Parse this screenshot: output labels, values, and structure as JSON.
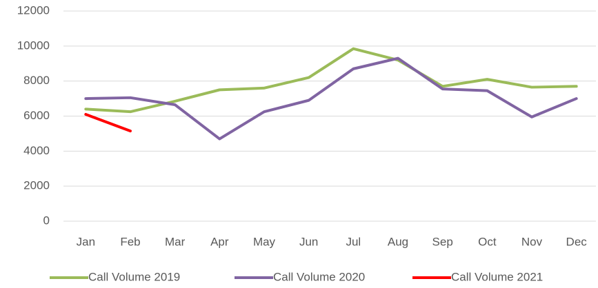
{
  "chart_data": {
    "type": "line",
    "categories": [
      "Jan",
      "Feb",
      "Mar",
      "Apr",
      "May",
      "Jun",
      "Jul",
      "Aug",
      "Sep",
      "Oct",
      "Nov",
      "Dec"
    ],
    "series": [
      {
        "name": "Call Volume 2019",
        "color": "#9bbb59",
        "values": [
          6400,
          6250,
          6850,
          7500,
          7600,
          8200,
          9850,
          9200,
          7700,
          8100,
          7650,
          7700
        ]
      },
      {
        "name": "Call Volume 2020",
        "color": "#8064a2",
        "values": [
          7000,
          7050,
          6650,
          4700,
          6250,
          6900,
          8700,
          9300,
          7550,
          7450,
          5950,
          7000
        ]
      },
      {
        "name": "Call Volume 2021",
        "color": "#ff0000",
        "values": [
          6100,
          5150,
          null,
          null,
          null,
          null,
          null,
          null,
          null,
          null,
          null,
          null
        ]
      }
    ],
    "ylim": [
      0,
      12000
    ],
    "yticks": [
      0,
      2000,
      4000,
      6000,
      8000,
      10000,
      12000
    ],
    "grid": true,
    "legend": "bottom"
  }
}
